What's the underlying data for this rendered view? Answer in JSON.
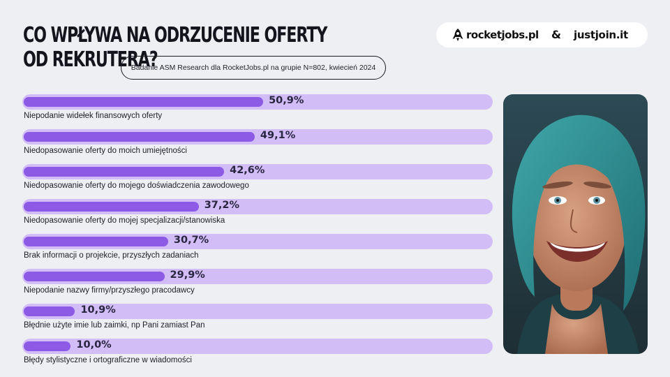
{
  "header": {
    "title_line1": "CO WPŁYWA NA ODRZUCENIE OFERTY",
    "title_line2": "OD REKRUTERA?",
    "subtitle": "Badanie ASM Research dla RocketJobs.pl na grupie N=802, kwiecień 2024"
  },
  "logos": {
    "rocketjobs": "rocketjobs.pl",
    "ampersand": "&",
    "justjoin": "justjoin.it",
    "rocket_icon": "rocket-icon"
  },
  "colors": {
    "background": "#eeeff3",
    "track": "#d2bdf7",
    "fill": "#8d5ae6",
    "text": "#1b1b24"
  },
  "chart_data": {
    "type": "bar",
    "orientation": "horizontal",
    "xlim": [
      0,
      100
    ],
    "categories": [
      "Niepodanie widełek finansowych oferty",
      "Niedopasowanie oferty do moich umiejętności",
      "Niedopasowanie oferty do mojego doświadczenia zawodowego",
      "Niedopasowanie oferty do mojej specjalizacji/stanowiska",
      "Brak informacji o projekcie, przyszłych zadaniach",
      "Niepodanie nazwy firmy/przyszłego pracodawcy",
      "Błędnie użyte imie lub zaimki, np Pani zamiast Pan",
      "Błędy stylistyczne i ortograficzne w wiadomości"
    ],
    "values": [
      50.9,
      49.1,
      42.6,
      37.2,
      30.7,
      29.9,
      10.9,
      10.0
    ],
    "value_labels": [
      "50,9%",
      "49,1%",
      "42,6%",
      "37,2%",
      "30,7%",
      "29,9%",
      "10,9%",
      "10,0%"
    ]
  }
}
